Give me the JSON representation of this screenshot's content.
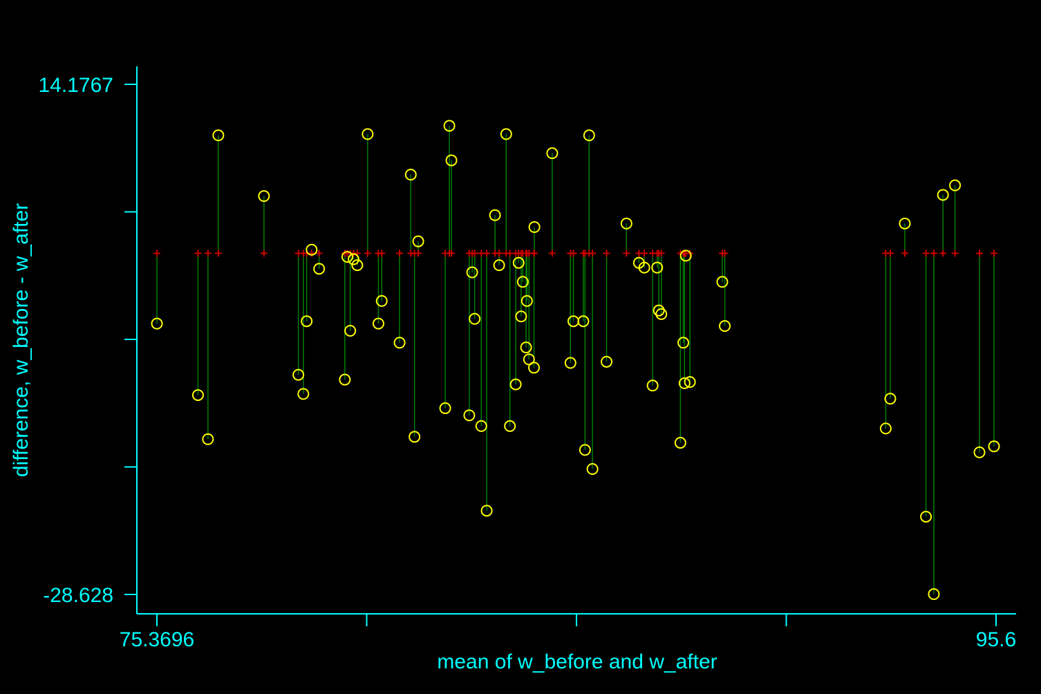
{
  "chart_data": {
    "type": "scatter",
    "title": "",
    "xlabel": "mean of w_before and w_after",
    "ylabel": "difference, w_before - w_after",
    "xlim": [
      75.3696,
      95.6
    ],
    "ylim": [
      -28.628,
      14.1767
    ],
    "x_tick_labels": [
      "75.3696",
      "95.6"
    ],
    "y_tick_labels": [
      "14.1767",
      "-28.628"
    ],
    "grid": false,
    "legend": "none",
    "colors": {
      "background": "#000000",
      "axes": "#00ffff",
      "points": "#ffff00",
      "fitted": "#cc0000",
      "spikes": "#008000"
    },
    "baseline_difference": 0.0,
    "series": [
      {
        "marker": "circle",
        "x": [
          75.37,
          76.36,
          76.6,
          76.85,
          77.95,
          78.78,
          78.9,
          78.98,
          79.1,
          79.28,
          79.9,
          79.96,
          80.03,
          80.11,
          80.2,
          80.45,
          80.71,
          80.79,
          81.22,
          81.49,
          81.58,
          81.67,
          82.32,
          82.42,
          82.47,
          82.9,
          82.97,
          83.03,
          83.19,
          83.32,
          83.52,
          83.62,
          83.79,
          83.88,
          84.02,
          84.09,
          84.15,
          84.19,
          84.27,
          84.29,
          84.34,
          84.46,
          84.47,
          84.9,
          85.34,
          85.41,
          85.65,
          85.69,
          85.79,
          85.87,
          86.21,
          86.69,
          86.99,
          87.12,
          87.32,
          87.43,
          87.47,
          87.53,
          87.99,
          88.06,
          88.09,
          88.12,
          88.22,
          89.0,
          89.06,
          94.1,
          92.94,
          93.05,
          93.4,
          93.91,
          94.32,
          95.2,
          94.61,
          95.55
        ],
        "y": [
          -5.9,
          -11.9,
          -15.6,
          9.9,
          4.8,
          -10.2,
          -11.8,
          -5.7,
          0.3,
          -1.3,
          -10.6,
          -0.3,
          -6.5,
          -0.5,
          -1.0,
          10.0,
          -5.9,
          -4.0,
          -7.5,
          6.6,
          -15.4,
          1.0,
          -13.0,
          10.7,
          7.8,
          -13.6,
          -1.6,
          -5.5,
          -14.5,
          -21.6,
          3.2,
          -1.0,
          10.0,
          -14.5,
          -11.0,
          -0.8,
          -5.3,
          -2.4,
          -7.9,
          -4.0,
          -8.9,
          -9.6,
          2.2,
          8.4,
          -9.2,
          -5.7,
          -5.7,
          -16.5,
          9.9,
          -18.1,
          -9.1,
          2.5,
          -0.8,
          -1.2,
          -11.1,
          -1.2,
          -4.8,
          -5.1,
          -15.9,
          -7.5,
          -10.9,
          -0.2,
          -10.8,
          -2.4,
          -6.1,
          -28.6,
          -14.7,
          -12.2,
          2.5,
          -22.1,
          4.9,
          -16.7,
          5.7,
          -16.2
        ]
      },
      {
        "marker": "plus",
        "name": "",
        "x_same_as_circles": true,
        "y_constant": 0.0
      }
    ]
  }
}
